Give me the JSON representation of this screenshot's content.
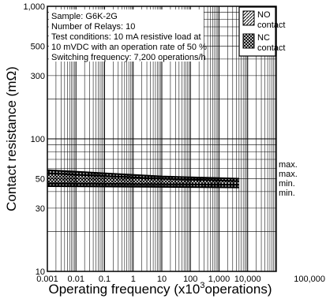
{
  "chart_data": {
    "type": "line",
    "xlabel": "Operating frequency (x10",
    "xlabel_sup": "3",
    "xlabel_tail": "operations)",
    "ylabel": "Contact resistance (mΩ)",
    "x_scale": "log",
    "y_scale": "log",
    "xlim": [
      0.001,
      100000
    ],
    "ylim": [
      10,
      1000
    ],
    "grid": true,
    "x_ticks": [
      {
        "value": 0.001,
        "label": "0.001"
      },
      {
        "value": 0.01,
        "label": "0.01"
      },
      {
        "value": 0.1,
        "label": "0.1"
      },
      {
        "value": 1,
        "label": "1"
      },
      {
        "value": 10,
        "label": "10"
      },
      {
        "value": 100,
        "label": "100"
      },
      {
        "value": 1000,
        "label": "1,000"
      },
      {
        "value": 10000,
        "label": "10,000"
      },
      {
        "value": 100000,
        "label": "100,000"
      }
    ],
    "y_ticks": [
      {
        "value": 10,
        "label": "10"
      },
      {
        "value": 30,
        "label": "30"
      },
      {
        "value": 50,
        "label": "50"
      },
      {
        "value": 100,
        "label": "100"
      },
      {
        "value": 300,
        "label": "300"
      },
      {
        "value": 500,
        "label": "500"
      },
      {
        "value": 1000,
        "label": "1,000"
      }
    ],
    "info_lines": [
      "Sample: G6K-2G",
      "Number of Relays: 10",
      "Test conditions: 10 mA resistive load at",
      "10 mVDC with an operation rate of 50 %",
      "Switching frequency: 7,200 operations/h"
    ],
    "legend_position": "top-right",
    "legend": [
      {
        "line1": "NO",
        "line2": "contact",
        "pattern": "hatch-forward"
      },
      {
        "line1": "NC",
        "line2": "contact",
        "pattern": "hatch-cross"
      }
    ],
    "series": [
      {
        "role": "NO max",
        "end_label": "max.",
        "x": [
          0.001,
          10,
          5000
        ],
        "y": [
          58,
          52,
          50
        ]
      },
      {
        "role": "NC max",
        "end_label": "max.",
        "x": [
          0.001,
          10,
          5000
        ],
        "y": [
          55,
          50,
          48
        ]
      },
      {
        "role": "NO min",
        "end_label": "min.",
        "x": [
          0.001,
          10,
          5000
        ],
        "y": [
          46,
          45.5,
          45
        ]
      },
      {
        "role": "NC min",
        "end_label": "min.",
        "x": [
          0.001,
          10,
          5000
        ],
        "y": [
          44,
          43.5,
          43
        ]
      }
    ]
  }
}
